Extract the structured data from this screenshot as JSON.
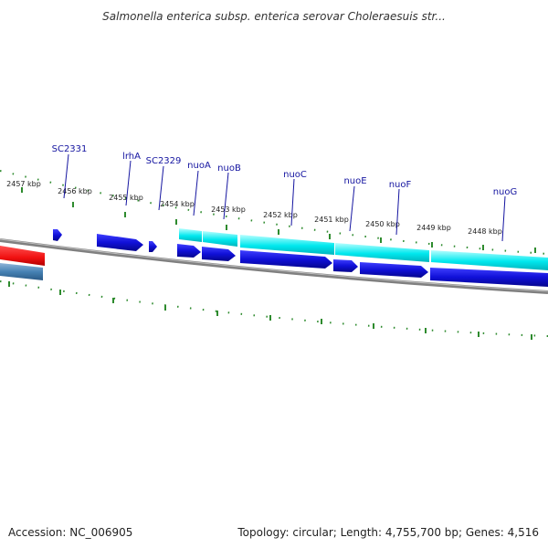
{
  "title": "Salmonella enterica subsp. enterica serovar Choleraesuis str...",
  "footer": {
    "accession": "Accession: NC_006905",
    "topology": "Topology: circular; Length: 4,755,700 bp; Genes: 4,516"
  },
  "scale_labels": [
    "2457 kbp",
    "2456 kbp",
    "2455 kbp",
    "2454 kbp",
    "2453 kbp",
    "2452 kbp",
    "2451 kbp",
    "2450 kbp",
    "2449 kbp",
    "2448 kbp"
  ],
  "gene_labels": [
    "SC2331",
    "lrhA",
    "SC2329",
    "nuoA",
    "nuoB",
    "nuoC",
    "nuoE",
    "nuoF",
    "nuoG"
  ],
  "colors": {
    "backbone": "#808080",
    "tick": "#2e8b2e",
    "cds": "#1010d8",
    "gene_feature": "#00e8ee",
    "other_red": "#ff2020",
    "other_blue": "#4682b4",
    "label": "#1414a0"
  }
}
